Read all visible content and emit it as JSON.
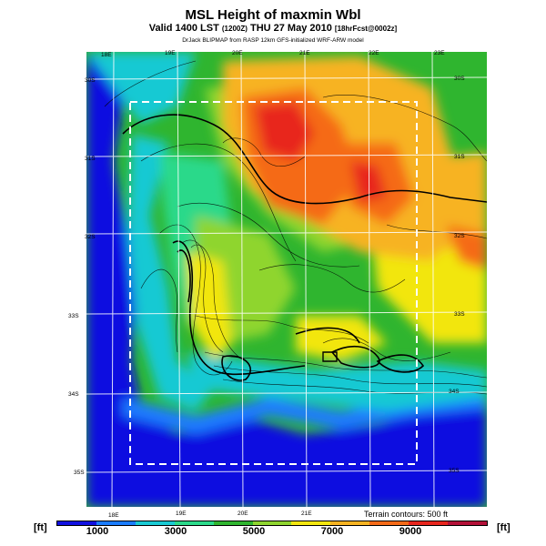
{
  "title": "MSL Height of maxmin Wbl",
  "subtitle_main": "Valid 1400 LST",
  "subtitle_small": "(1200Z)",
  "subtitle_rest": "THU 27 May 2010",
  "subtitle_tag": "[18hrFcst@0002z]",
  "credit": "DrJack BLIPMAP from RASP 12km GFS-initialized WRF-ARW model",
  "longitude_labels_top": [
    "18E",
    "19E",
    "20E",
    "21E",
    "22E",
    "23E"
  ],
  "longitude_labels_bottom": [
    "18E",
    "19E",
    "20E",
    "21E"
  ],
  "latitude_labels_right": [
    "30S",
    "31S",
    "32S",
    "33S",
    "34S",
    "35S"
  ],
  "latitude_labels_left": [
    "30S",
    "31S",
    "32S",
    "33S",
    "34S",
    "35S"
  ],
  "terrain_note": "Terrain contours: 500 ft",
  "colorbar": {
    "unit_left": "[ft]",
    "unit_right": "[ft]",
    "tick_labels": [
      "1000",
      "3000",
      "5000",
      "7000",
      "9000"
    ],
    "colors": [
      "#1010e0",
      "#1a7cff",
      "#19c9d3",
      "#2bd98a",
      "#2fb52f",
      "#8fd52f",
      "#f2e60f",
      "#f7b322",
      "#f56a17",
      "#e8261d",
      "#b31038"
    ]
  }
}
